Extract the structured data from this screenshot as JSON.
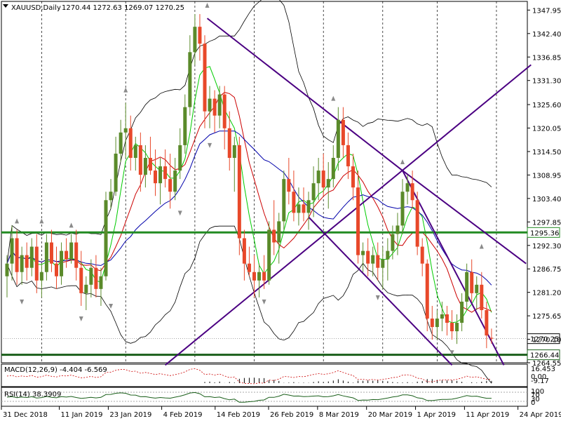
{
  "chart_data": {
    "type": "candlestick",
    "symbol": "XAUUSD,Daily",
    "ohlc_header": "1270.44 1272.63 1269.07 1270.25",
    "price_axis": {
      "min": 1264.55,
      "max": 1350.0,
      "ticks": [
        "1347.95",
        "1342.40",
        "1336.85",
        "1331.30",
        "1325.60",
        "1320.05",
        "1314.50",
        "1308.95",
        "1303.40",
        "1297.85",
        "1292.30",
        "1286.75",
        "1281.20",
        "1275.65",
        "1270.10",
        "1264.55"
      ]
    },
    "date_labels": [
      "31 Dec 2018",
      "11 Jan 2019",
      "23 Jan 2019",
      "4 Feb 2019",
      "14 Feb 2019",
      "26 Feb 2019",
      "8 Mar 2019",
      "20 Mar 2019",
      "1 Apr 2019",
      "11 Apr 2019",
      "24 Apr 2019"
    ],
    "current_price": "1270.25",
    "horizontal_levels": [
      {
        "label": "1295.36",
        "value": 1295.36,
        "color": "#228b22"
      },
      {
        "label": "1266.44",
        "value": 1266.44,
        "color": "#1a5f1a"
      }
    ],
    "colors": {
      "bull": "#5a8a2a",
      "bear": "#e8482a",
      "channel": "#4b0082",
      "bb": "#000000",
      "ma_fast": "#00cc00",
      "ma_mid": "#cc0000",
      "ma_slow": "#0000aa"
    },
    "candles": [
      [
        1285,
        1290,
        1280,
        1288
      ],
      [
        1288,
        1297,
        1284,
        1294
      ],
      [
        1294,
        1296,
        1283,
        1286
      ],
      [
        1286,
        1292,
        1283,
        1290
      ],
      [
        1290,
        1293,
        1284,
        1287
      ],
      [
        1287,
        1294,
        1285,
        1292
      ],
      [
        1292,
        1295,
        1281,
        1284
      ],
      [
        1284,
        1288,
        1280,
        1286
      ],
      [
        1286,
        1295,
        1284,
        1293
      ],
      [
        1293,
        1296,
        1286,
        1288
      ],
      [
        1288,
        1292,
        1282,
        1285
      ],
      [
        1285,
        1293,
        1283,
        1291
      ],
      [
        1291,
        1294,
        1287,
        1289
      ],
      [
        1289,
        1295,
        1288,
        1293
      ],
      [
        1293,
        1296,
        1284,
        1287
      ],
      [
        1287,
        1291,
        1278,
        1281
      ],
      [
        1281,
        1285,
        1277,
        1283
      ],
      [
        1283,
        1289,
        1280,
        1287
      ],
      [
        1287,
        1290,
        1280,
        1282
      ],
      [
        1282,
        1287,
        1278,
        1285
      ],
      [
        1285,
        1305,
        1284,
        1303
      ],
      [
        1303,
        1308,
        1301,
        1305
      ],
      [
        1305,
        1318,
        1304,
        1314
      ],
      [
        1314,
        1322,
        1312,
        1319
      ],
      [
        1319,
        1326,
        1313,
        1320
      ],
      [
        1320,
        1323,
        1310,
        1313
      ],
      [
        1313,
        1318,
        1310,
        1316
      ],
      [
        1316,
        1319,
        1305,
        1309
      ],
      [
        1309,
        1316,
        1306,
        1313
      ],
      [
        1313,
        1318,
        1309,
        1310
      ],
      [
        1310,
        1315,
        1304,
        1307
      ],
      [
        1307,
        1313,
        1302,
        1311
      ],
      [
        1311,
        1315,
        1306,
        1308
      ],
      [
        1308,
        1314,
        1301,
        1305
      ],
      [
        1305,
        1313,
        1303,
        1310
      ],
      [
        1310,
        1320,
        1308,
        1316
      ],
      [
        1316,
        1328,
        1314,
        1325
      ],
      [
        1325,
        1342,
        1323,
        1338
      ],
      [
        1338,
        1347,
        1335,
        1344
      ],
      [
        1344,
        1347,
        1336,
        1340
      ],
      [
        1340,
        1342,
        1320,
        1324
      ],
      [
        1324,
        1330,
        1320,
        1327
      ],
      [
        1327,
        1329,
        1319,
        1323
      ],
      [
        1323,
        1330,
        1320,
        1328
      ],
      [
        1328,
        1330,
        1315,
        1320
      ],
      [
        1320,
        1324,
        1310,
        1313
      ],
      [
        1313,
        1318,
        1305,
        1316
      ],
      [
        1316,
        1318,
        1290,
        1294
      ],
      [
        1294,
        1296,
        1284,
        1288
      ],
      [
        1288,
        1292,
        1285,
        1286
      ],
      [
        1286,
        1290,
        1280,
        1284
      ],
      [
        1284,
        1288,
        1280,
        1286
      ],
      [
        1286,
        1290,
        1282,
        1284
      ],
      [
        1284,
        1298,
        1283,
        1296
      ],
      [
        1296,
        1303,
        1290,
        1293
      ],
      [
        1293,
        1300,
        1288,
        1298
      ],
      [
        1298,
        1310,
        1296,
        1308
      ],
      [
        1308,
        1313,
        1302,
        1305
      ],
      [
        1305,
        1310,
        1298,
        1300
      ],
      [
        1300,
        1306,
        1297,
        1302
      ],
      [
        1302,
        1306,
        1298,
        1300
      ],
      [
        1300,
        1305,
        1296,
        1303
      ],
      [
        1303,
        1311,
        1299,
        1307
      ],
      [
        1307,
        1313,
        1303,
        1310
      ],
      [
        1310,
        1314,
        1304,
        1306
      ],
      [
        1306,
        1312,
        1301,
        1308
      ],
      [
        1308,
        1316,
        1306,
        1313
      ],
      [
        1313,
        1325,
        1310,
        1322
      ],
      [
        1322,
        1325,
        1313,
        1316
      ],
      [
        1316,
        1319,
        1308,
        1311
      ],
      [
        1311,
        1314,
        1303,
        1306
      ],
      [
        1306,
        1310,
        1288,
        1290
      ],
      [
        1290,
        1293,
        1286,
        1291
      ],
      [
        1291,
        1294,
        1285,
        1288
      ],
      [
        1288,
        1292,
        1285,
        1290
      ],
      [
        1290,
        1293,
        1284,
        1287
      ],
      [
        1287,
        1292,
        1282,
        1289
      ],
      [
        1289,
        1294,
        1284,
        1291
      ],
      [
        1291,
        1297,
        1289,
        1295
      ],
      [
        1295,
        1300,
        1290,
        1297
      ],
      [
        1297,
        1308,
        1295,
        1305
      ],
      [
        1305,
        1309,
        1302,
        1307
      ],
      [
        1307,
        1310,
        1301,
        1303
      ],
      [
        1303,
        1305,
        1290,
        1292
      ],
      [
        1292,
        1294,
        1285,
        1288
      ],
      [
        1288,
        1289,
        1272,
        1275
      ],
      [
        1275,
        1278,
        1270,
        1273
      ],
      [
        1273,
        1277,
        1270,
        1275
      ],
      [
        1275,
        1279,
        1272,
        1276
      ],
      [
        1276,
        1278,
        1271,
        1274
      ],
      [
        1274,
        1277,
        1270,
        1272
      ],
      [
        1272,
        1276,
        1269,
        1274
      ],
      [
        1274,
        1281,
        1272,
        1279
      ],
      [
        1279,
        1288,
        1277,
        1286
      ],
      [
        1286,
        1289,
        1279,
        1281
      ],
      [
        1281,
        1285,
        1277,
        1283
      ],
      [
        1283,
        1286,
        1275,
        1277
      ],
      [
        1277,
        1279,
        1268,
        1271
      ],
      [
        1270.44,
        1272.63,
        1269.07,
        1270.25
      ]
    ],
    "indicators": {
      "macd": {
        "label": "MACD(12,26,9) -4.404 -6.569",
        "axis": [
          "16.453",
          "0.00",
          "-9.17"
        ]
      },
      "rsi": {
        "label": "RSI(14) 38.3909",
        "axis": [
          "100",
          "70",
          "30",
          "0"
        ]
      }
    }
  }
}
